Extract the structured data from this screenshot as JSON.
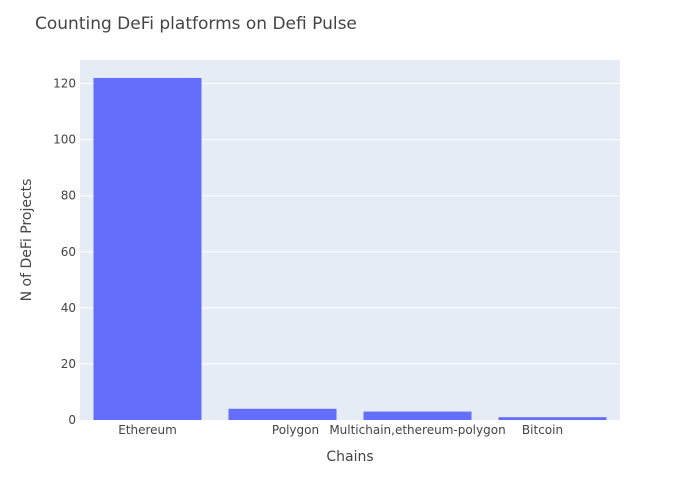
{
  "chart_data": {
    "type": "bar",
    "title": "Counting DeFi platforms on Defi Pulse",
    "xlabel": "Chains",
    "ylabel": "N of DeFi Projects",
    "categories": [
      "Ethereum",
      "Polygon",
      "Multichain,ethereum-polygon",
      "Bitcoin"
    ],
    "values": [
      122,
      4,
      3,
      1
    ],
    "ylim": [
      0,
      128.4
    ],
    "yticks": [
      0,
      20,
      40,
      60,
      80,
      100,
      120
    ],
    "grid": true,
    "legend": "none",
    "colors": {
      "bar": "#636efa",
      "plot_background": "#e5ecf6",
      "grid": "#ffffff",
      "text": "#444444",
      "title": "#444444"
    }
  }
}
